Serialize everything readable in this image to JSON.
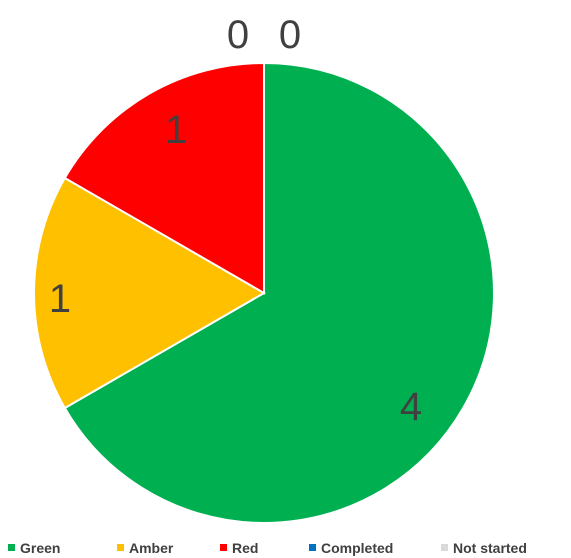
{
  "chart_data": {
    "type": "pie",
    "title": "",
    "start_angle_deg": 0,
    "direction": "clockwise",
    "slices": [
      {
        "label": "Green",
        "value": 4,
        "color": "#00b050"
      },
      {
        "label": "Amber",
        "value": 1,
        "color": "#ffc000"
      },
      {
        "label": "Red",
        "value": 1,
        "color": "#ff0000"
      },
      {
        "label": "Completed",
        "value": 0,
        "color": "#0070c0"
      },
      {
        "label": "Not started",
        "value": 0,
        "color": "#d9d9d9"
      }
    ],
    "data_labels": [
      "4",
      "1",
      "1",
      "0",
      "0"
    ],
    "legend_position": "bottom"
  }
}
